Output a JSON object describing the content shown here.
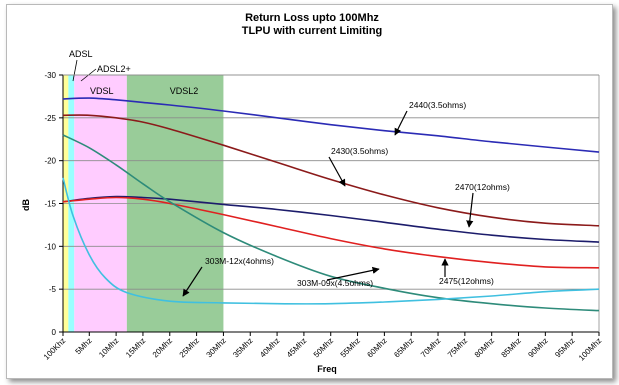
{
  "chart_data": {
    "type": "line",
    "title": [
      "Return Loss upto 100Mhz",
      "TLPU with current Limiting"
    ],
    "xlabel": "Freq",
    "ylabel": "dB",
    "x_categories": [
      "100Khz",
      "5Mhz",
      "10Mhz",
      "15Mhz",
      "20Mhz",
      "25Mhz",
      "30Mhz",
      "35Mhz",
      "40Mhz",
      "45Mhz",
      "50Mhz",
      "55Mhz",
      "60Mhz",
      "65Mhz",
      "70Mhz",
      "75Mhz",
      "80Mhz",
      "85Mhz",
      "90Mhz",
      "95Mhz",
      "100Mhz"
    ],
    "xlim": [
      0.1,
      100
    ],
    "ylim": [
      0,
      -30
    ],
    "y_ticks": [
      0,
      -5,
      -10,
      -15,
      -20,
      -25,
      -30
    ],
    "grid": "horizontal",
    "bands": [
      {
        "label": "ADSL",
        "from": 0.1,
        "to": 1.1,
        "color": "#ffff99"
      },
      {
        "label": "ADSL2+",
        "from": 1.1,
        "to": 2.2,
        "color": "#99ffff"
      },
      {
        "label": "VDSL",
        "from": 2.2,
        "to": 12,
        "color": "#ffccff"
      },
      {
        "label": "VDSL2",
        "from": 12,
        "to": 30,
        "color": "#99cc99"
      }
    ],
    "series": [
      {
        "name": "2440(3.5ohms)",
        "color": "#2b2bb5",
        "x": [
          0.1,
          5,
          10,
          15,
          20,
          30,
          40,
          50,
          60,
          70,
          80,
          90,
          100
        ],
        "y": [
          -27.2,
          -27.3,
          -27.1,
          -26.8,
          -26.5,
          -25.8,
          -25.0,
          -24.2,
          -23.5,
          -22.9,
          -22.2,
          -21.6,
          -21.0
        ]
      },
      {
        "name": "2430(3.5ohms)",
        "color": "#8b1a1a",
        "x": [
          0.1,
          5,
          10,
          15,
          20,
          30,
          40,
          50,
          60,
          70,
          80,
          90,
          100
        ],
        "y": [
          -25.3,
          -25.3,
          -25.0,
          -24.5,
          -23.7,
          -21.8,
          -19.8,
          -17.8,
          -16.0,
          -14.5,
          -13.4,
          -12.7,
          -12.4
        ]
      },
      {
        "name": "2470(12ohms)",
        "color": "#1c1c6b",
        "x": [
          0.1,
          5,
          10,
          15,
          20,
          30,
          40,
          50,
          60,
          70,
          80,
          90,
          100
        ],
        "y": [
          -15.2,
          -15.6,
          -15.8,
          -15.7,
          -15.5,
          -14.9,
          -14.3,
          -13.6,
          -12.8,
          -12.0,
          -11.3,
          -10.8,
          -10.5
        ]
      },
      {
        "name": "2475(12ohms)",
        "color": "#e02020",
        "x": [
          0.1,
          5,
          10,
          15,
          20,
          30,
          40,
          50,
          60,
          70,
          80,
          90,
          100
        ],
        "y": [
          -15.2,
          -15.5,
          -15.7,
          -15.5,
          -15.0,
          -13.7,
          -12.3,
          -10.9,
          -9.7,
          -8.8,
          -8.1,
          -7.6,
          -7.5
        ]
      },
      {
        "name": "303M-09x(4.5ohms)",
        "color": "#2e8b7a",
        "x": [
          0.1,
          5,
          10,
          15,
          20,
          30,
          40,
          50,
          60,
          70,
          80,
          90,
          100
        ],
        "y": [
          -23.0,
          -21.5,
          -19.5,
          -17.3,
          -15.2,
          -11.6,
          -8.8,
          -6.5,
          -5.1,
          -4.0,
          -3.3,
          -2.8,
          -2.5
        ]
      },
      {
        "name": "303M-12x(4ohms)",
        "color": "#40c0e0",
        "x": [
          0.1,
          2,
          5,
          8,
          12,
          20,
          30,
          40,
          50,
          60,
          70,
          80,
          90,
          100
        ],
        "y": [
          -18.0,
          -13.5,
          -9.0,
          -6.3,
          -4.6,
          -3.6,
          -3.4,
          -3.3,
          -3.3,
          -3.5,
          -3.8,
          -4.2,
          -4.7,
          -5.0
        ]
      }
    ],
    "annotations": [
      {
        "text": "2440(3.5ohms)",
        "points_to": "2440(3.5ohms)"
      },
      {
        "text": "2430(3.5ohms)",
        "points_to": "2430(3.5ohms)"
      },
      {
        "text": "2470(12ohms)",
        "points_to": "2470(12ohms)"
      },
      {
        "text": "2475(12ohms)",
        "points_to": "2475(12ohms)"
      },
      {
        "text": "303M-09x(4.5ohms)",
        "points_to": "303M-09x(4.5ohms)"
      },
      {
        "text": "303M-12x(4ohms)",
        "points_to": "303M-12x(4ohms)"
      }
    ]
  }
}
